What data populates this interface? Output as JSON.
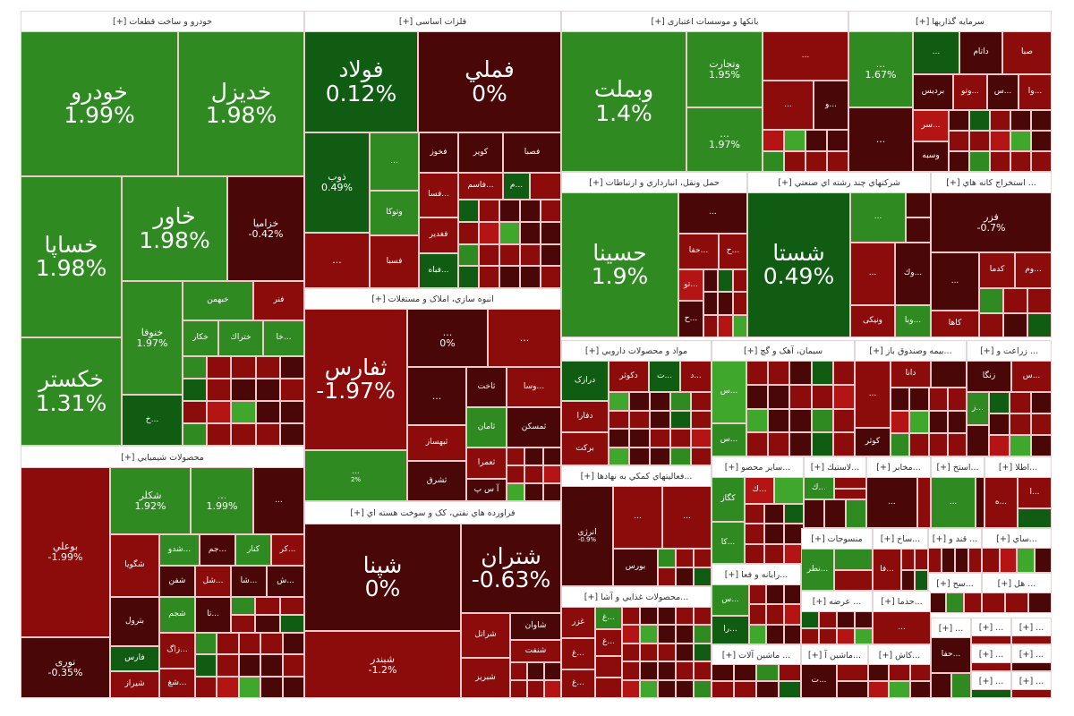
{
  "tones": {
    "g": "#2f8a22",
    "G": "#3fa82c",
    "dg": "#0f5c12",
    "r": "#8c0c0c",
    "R": "#b41414",
    "dr": "#4a0707"
  },
  "sectors": [
    {
      "header": "خودرو و ساخت قطعات [+]",
      "tiles": [
        {
          "symbol": "خودرو",
          "change": "1.99%",
          "tone": "g"
        },
        {
          "symbol": "خديزل",
          "change": "1.98%",
          "tone": "g"
        },
        {
          "symbol": "خساپا",
          "change": "1.98%",
          "tone": "g"
        },
        {
          "symbol": "خاور",
          "change": "1.98%",
          "tone": "g"
        },
        {
          "symbol": "خزامیا",
          "change": "-0.42%",
          "tone": "dr"
        },
        {
          "symbol": "خکستر",
          "change": "1.31%",
          "tone": "g"
        },
        {
          "symbol": "خنوفا",
          "change": "1.97%",
          "tone": "g"
        },
        {
          "symbol": "خبهمن",
          "change": "",
          "tone": "g"
        },
        {
          "symbol": "فنر",
          "change": "",
          "tone": "r"
        },
        {
          "symbol": "خکار",
          "change": "",
          "tone": "g"
        },
        {
          "symbol": "ختراك",
          "change": "",
          "tone": "g"
        },
        {
          "symbol": "...خا",
          "change": "",
          "tone": "g"
        },
        {
          "symbol": "...خ",
          "change": "",
          "tone": "dg"
        }
      ]
    },
    {
      "header": "فلزات اساسی [+]",
      "tiles": [
        {
          "symbol": "فولاد",
          "change": "0.12%",
          "tone": "dg"
        },
        {
          "symbol": "فملي",
          "change": "0%",
          "tone": "dr"
        },
        {
          "symbol": "ذوب",
          "change": "0.49%",
          "tone": "dg"
        },
        {
          "symbol": "...",
          "change": "",
          "tone": "g"
        },
        {
          "symbol": "وتوكا",
          "change": "",
          "tone": "g"
        },
        {
          "symbol": "...",
          "change": "",
          "tone": "r"
        },
        {
          "symbol": "فسبا",
          "change": "",
          "tone": "r"
        },
        {
          "symbol": "فخوز",
          "change": "",
          "tone": "dr"
        },
        {
          "symbol": "کویر",
          "change": "",
          "tone": "dr"
        },
        {
          "symbol": "فصبا",
          "change": "",
          "tone": "dr"
        },
        {
          "symbol": "...فاسم",
          "change": "",
          "tone": "r"
        },
        {
          "symbol": "...م",
          "change": "",
          "tone": "dg"
        },
        {
          "symbol": "...فسا",
          "change": "",
          "tone": "r"
        },
        {
          "symbol": "فغدير",
          "change": "",
          "tone": "r"
        },
        {
          "symbol": "...فباه",
          "change": "",
          "tone": "dg"
        }
      ]
    },
    {
      "header": "بانکها و موسسات اعتباری [+]",
      "tiles": [
        {
          "symbol": "وبملت",
          "change": "1.4%",
          "tone": "g"
        },
        {
          "symbol": "وتجارت",
          "change": "1.95%",
          "tone": "g"
        },
        {
          "symbol": "...",
          "change": "1.97%",
          "tone": "g"
        },
        {
          "symbol": "...",
          "change": "",
          "tone": "r"
        },
        {
          "symbol": "...",
          "change": "",
          "tone": "r"
        },
        {
          "symbol": "...و",
          "change": "",
          "tone": "dr"
        }
      ]
    },
    {
      "header": "سرمايه گذاريها [+]",
      "tiles": [
        {
          "symbol": "...",
          "change": "1.67%",
          "tone": "g"
        },
        {
          "symbol": "...",
          "change": "",
          "tone": "dg"
        },
        {
          "symbol": "داتام",
          "change": "",
          "tone": "dr"
        },
        {
          "symbol": "صبا",
          "change": "",
          "tone": "r"
        },
        {
          "symbol": "برديس",
          "change": "",
          "tone": "dr"
        },
        {
          "symbol": "...وتو",
          "change": "",
          "tone": "r"
        },
        {
          "symbol": "...س",
          "change": "",
          "tone": "dr"
        },
        {
          "symbol": "...وا",
          "change": "",
          "tone": "r"
        },
        {
          "symbol": "...",
          "change": "",
          "tone": "dr"
        },
        {
          "symbol": "...سر",
          "change": "",
          "tone": "R"
        },
        {
          "symbol": "وسبه",
          "change": "",
          "tone": "dr"
        }
      ]
    },
    {
      "header": "حمل ونقل، انبارداري و ارتباطات [+]",
      "tiles": [
        {
          "symbol": "حسينا",
          "change": "1.9%",
          "tone": "g"
        },
        {
          "symbol": "...",
          "change": "",
          "tone": "dr"
        },
        {
          "symbol": "...حفا",
          "change": "",
          "tone": "r"
        },
        {
          "symbol": "...ح",
          "change": "",
          "tone": "r"
        },
        {
          "symbol": "...تو",
          "change": "",
          "tone": "R"
        },
        {
          "symbol": "...ح",
          "change": "",
          "tone": "dr"
        }
      ]
    },
    {
      "header": "شرکتهاي چند رشته اي صنعتي [+]",
      "tiles": [
        {
          "symbol": "شستا",
          "change": "0.49%",
          "tone": "dg"
        },
        {
          "symbol": "...",
          "change": "",
          "tone": "g"
        },
        {
          "symbol": "...",
          "change": "",
          "tone": "r"
        },
        {
          "symbol": "...وك",
          "change": "",
          "tone": "dr"
        },
        {
          "symbol": "ونیکی",
          "change": "",
          "tone": "r"
        },
        {
          "symbol": "...وبا",
          "change": "",
          "tone": "g"
        }
      ]
    },
    {
      "header": "... استخراج کانه هاي [+]",
      "tiles": [
        {
          "symbol": "فزر",
          "change": "-0.7%",
          "tone": "dr"
        },
        {
          "symbol": "...",
          "change": "",
          "tone": "dr"
        },
        {
          "symbol": "کدما",
          "change": "",
          "tone": "r"
        },
        {
          "symbol": "...وم",
          "change": "",
          "tone": "r"
        },
        {
          "symbol": "کاها",
          "change": "",
          "tone": "r"
        }
      ]
    },
    {
      "header": "انبوه سازي، املاک و مستغلات [+]",
      "tiles": [
        {
          "symbol": "ثفارس",
          "change": "-1.97%",
          "tone": "r"
        },
        {
          "symbol": "...",
          "change": "2%",
          "tone": "g"
        },
        {
          "symbol": "...",
          "change": "0%",
          "tone": "dr"
        },
        {
          "symbol": "...",
          "change": "",
          "tone": "r"
        },
        {
          "symbol": "...",
          "change": "",
          "tone": "dr"
        },
        {
          "symbol": "ثاخت",
          "change": "",
          "tone": "dr"
        },
        {
          "symbol": "...وسا",
          "change": "",
          "tone": "r"
        },
        {
          "symbol": "ثبهساز",
          "change": "",
          "tone": "r"
        },
        {
          "symbol": "ثشرق",
          "change": "",
          "tone": "dr"
        },
        {
          "symbol": "ثامان",
          "change": "",
          "tone": "g"
        },
        {
          "symbol": "ثمسکن",
          "change": "",
          "tone": "dr"
        },
        {
          "symbol": "ثعمرا",
          "change": "",
          "tone": "r"
        },
        {
          "symbol": "آ س پ",
          "change": "",
          "tone": "dr"
        }
      ]
    },
    {
      "header": "محصولات شيميايي [+]",
      "tiles": [
        {
          "symbol": "بوعلي",
          "change": "-1.99%",
          "tone": "r"
        },
        {
          "symbol": "نوری",
          "change": "-0.35%",
          "tone": "dr"
        },
        {
          "symbol": "شکلر",
          "change": "1.92%",
          "tone": "g"
        },
        {
          "symbol": "...",
          "change": "1.99%",
          "tone": "g"
        },
        {
          "symbol": "...",
          "change": "",
          "tone": "dr"
        },
        {
          "symbol": "شگويا",
          "change": "",
          "tone": "r"
        },
        {
          "symbol": "...شدو",
          "change": "",
          "tone": "g"
        },
        {
          "symbol": "...جم",
          "change": "",
          "tone": "dr"
        },
        {
          "symbol": "کنار",
          "change": "",
          "tone": "g"
        },
        {
          "symbol": "...کر",
          "change": "",
          "tone": "r"
        },
        {
          "symbol": "شفن",
          "change": "",
          "tone": "dr"
        },
        {
          "symbol": "...شل",
          "change": "",
          "tone": "r"
        },
        {
          "symbol": "...شا",
          "change": "",
          "tone": "dr"
        },
        {
          "symbol": "...ش",
          "change": "",
          "tone": "dr"
        },
        {
          "symbol": "بترول",
          "change": "",
          "tone": "dr"
        },
        {
          "symbol": "فارس",
          "change": "",
          "tone": "dg"
        },
        {
          "symbol": "شيراز",
          "change": "",
          "tone": "r"
        },
        {
          "symbol": "شجم",
          "change": "",
          "tone": "g"
        },
        {
          "symbol": "...تا",
          "change": "",
          "tone": "dr"
        },
        {
          "symbol": "...زاگ",
          "change": "",
          "tone": "r"
        },
        {
          "symbol": "...شغ",
          "change": "",
          "tone": "r"
        }
      ]
    },
    {
      "header": "فراورده هاي نفتي، کک و سوخت هسته اي [+]",
      "tiles": [
        {
          "symbol": "شپنا",
          "change": "0%",
          "tone": "dr"
        },
        {
          "symbol": "شبندر",
          "change": "-1.2%",
          "tone": "r"
        },
        {
          "symbol": "شتران",
          "change": "-0.63%",
          "tone": "dr"
        },
        {
          "symbol": "شراتل",
          "change": "",
          "tone": "r"
        },
        {
          "symbol": "شاوان",
          "change": "",
          "tone": "dr"
        },
        {
          "symbol": "شنفت",
          "change": "",
          "tone": "r"
        },
        {
          "symbol": "شبريز",
          "change": "",
          "tone": "r"
        }
      ]
    },
    {
      "header": "مواد و محصولات دارويي [+]",
      "tiles": [
        {
          "symbol": "درازک",
          "change": "",
          "tone": "dg"
        },
        {
          "symbol": "دکوثر",
          "change": "",
          "tone": "r"
        },
        {
          "symbol": "...ت",
          "change": "",
          "tone": "dg"
        },
        {
          "symbol": "...د",
          "change": "",
          "tone": "r"
        },
        {
          "symbol": "دفارا",
          "change": "",
          "tone": "r"
        },
        {
          "symbol": "برکت",
          "change": "",
          "tone": "r"
        }
      ]
    },
    {
      "header": "سيمان، آهک و گچ [+]",
      "tiles": [
        {
          "symbol": "...س",
          "change": "",
          "tone": "G"
        },
        {
          "symbol": "...س",
          "change": "",
          "tone": "g"
        }
      ]
    },
    {
      "header": "...بیمه وصندوق باز [+]",
      "tiles": [
        {
          "symbol": "...",
          "change": "",
          "tone": "r"
        },
        {
          "symbol": "دانا",
          "change": "",
          "tone": "r"
        },
        {
          "symbol": "کوثر",
          "change": "",
          "tone": "dr"
        }
      ]
    },
    {
      "header": "... زراعت و [+]",
      "tiles": [
        {
          "symbol": "زنگا",
          "change": "",
          "tone": "dr"
        },
        {
          "symbol": "...س",
          "change": "",
          "tone": "r"
        },
        {
          "symbol": "...ز",
          "change": "",
          "tone": "g"
        }
      ]
    },
    {
      "header": "...فعاليتهاي کمکي به نهادها [+]",
      "tiles": [
        {
          "symbol": "انرژی",
          "change": "-0.9%",
          "tone": "dr"
        },
        {
          "symbol": "...",
          "change": "",
          "tone": "r"
        },
        {
          "symbol": "...",
          "change": "",
          "tone": "r"
        },
        {
          "symbol": "بورس",
          "change": "",
          "tone": "dr"
        }
      ]
    },
    {
      "header": "...محصولات غذايي و آشا [+]",
      "tiles": [
        {
          "symbol": "غزر",
          "change": "",
          "tone": "r"
        },
        {
          "symbol": "...غ",
          "change": "",
          "tone": "g"
        },
        {
          "symbol": "...غ",
          "change": "",
          "tone": "r"
        },
        {
          "symbol": "...غ",
          "change": "",
          "tone": "r"
        },
        {
          "symbol": "...غ",
          "change": "",
          "tone": "r"
        }
      ]
    },
    {
      "header": "...ساير محصو [+]",
      "tiles": [
        {
          "symbol": "کگاز",
          "change": "",
          "tone": "g"
        },
        {
          "symbol": "...کا",
          "change": "",
          "tone": "g"
        },
        {
          "symbol": "...ك",
          "change": "",
          "tone": "R"
        }
      ]
    },
    {
      "header": "...لاستيك [+]",
      "tiles": [
        {
          "symbol": "...ك",
          "change": "",
          "tone": "g"
        }
      ]
    },
    {
      "header": "...مخابر [+]",
      "tiles": [
        {
          "symbol": "...",
          "change": "",
          "tone": "dr"
        }
      ]
    },
    {
      "header": "...استخ [+]",
      "tiles": [
        {
          "symbol": "...",
          "change": "",
          "tone": "g"
        }
      ]
    },
    {
      "header": "...اطلا [+]",
      "tiles": [
        {
          "symbol": "...ه",
          "change": "",
          "tone": "r"
        },
        {
          "symbol": "...ا",
          "change": "",
          "tone": "r"
        }
      ]
    },
    {
      "header": "...رايانه و فعا [+]",
      "tiles": [
        {
          "symbol": "...س",
          "change": "",
          "tone": "g"
        },
        {
          "symbol": "...را",
          "change": "",
          "tone": "dg"
        }
      ]
    },
    {
      "header": "منسوجات [+]",
      "tiles": [
        {
          "symbol": "...نطر",
          "change": "",
          "tone": "g"
        }
      ]
    },
    {
      "header": "...ساخ [+]",
      "tiles": [
        {
          "symbol": "...فا",
          "change": "",
          "tone": "r"
        }
      ]
    },
    {
      "header": "... قند و [+]",
      "tiles": []
    },
    {
      "header": "...ساي [+]",
      "tiles": []
    },
    {
      "header": "...سح [+]",
      "tiles": []
    },
    {
      "header": "... هل [+]",
      "tiles": []
    },
    {
      "header": "... عرضه [+]",
      "tiles": []
    },
    {
      "header": "...حدما [+]",
      "tiles": [
        {
          "symbol": "...",
          "change": "",
          "tone": "r"
        }
      ]
    },
    {
      "header": "... ماشين آلات [+]",
      "tiles": []
    },
    {
      "header": "...ماشين آ [+]",
      "tiles": [
        {
          "symbol": "...ت",
          "change": "",
          "tone": "dr"
        }
      ]
    },
    {
      "header": "...کاش [+]",
      "tiles": []
    },
    {
      "header": "... [+]",
      "tiles": [
        {
          "symbol": "...حفا",
          "change": "",
          "tone": "dr"
        }
      ]
    },
    {
      "header": "... [+]",
      "tiles": []
    },
    {
      "header": "... [+]",
      "tiles": []
    },
    {
      "header": "... [+]",
      "tiles": []
    },
    {
      "header": "... [+]",
      "tiles": []
    },
    {
      "header": "... [+]",
      "tiles": []
    },
    {
      "header": "... [+]",
      "tiles": []
    }
  ]
}
